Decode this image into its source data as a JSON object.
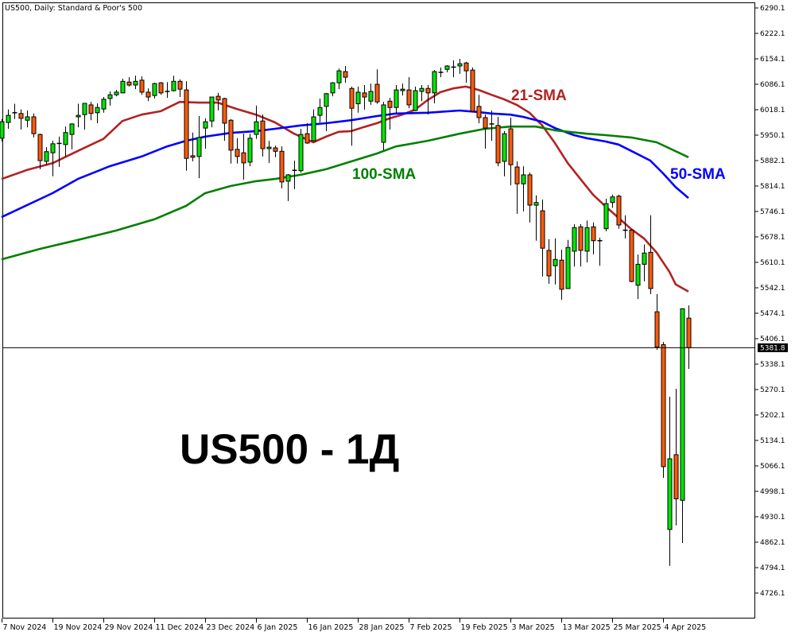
{
  "header": {
    "title": "US500, Daily:  Standard & Poor's 500"
  },
  "colors": {
    "bull": "#00e600",
    "bear": "#ff5a0a",
    "sma21": "#b22222",
    "sma50": "#0000ff",
    "sma100": "#008000",
    "crosshair": "#000000"
  },
  "chart_data": {
    "type": "candlestick",
    "title": "US500 - 1Д",
    "ylim": [
      4690,
      6300
    ],
    "grid": false,
    "y_ticks": [
      "6290.1",
      "6222.1",
      "6154.1",
      "6086.1",
      "6018.1",
      "5950.1",
      "5882.1",
      "5814.1",
      "5746.1",
      "5678.1",
      "5610.1",
      "5542.1",
      "5474.1",
      "5406.1",
      "5338.1",
      "5270.1",
      "5202.1",
      "5134.1",
      "5066.1",
      "4998.1",
      "4930.1",
      "4862.1",
      "4794.1",
      "4726.1"
    ],
    "x_ticks": [
      {
        "date": "2024-11-07",
        "label": "7 Nov 2024"
      },
      {
        "date": "2024-11-19",
        "label": "19 Nov 2024"
      },
      {
        "date": "2024-11-29",
        "label": "29 Nov 2024"
      },
      {
        "date": "2024-12-11",
        "label": "11 Dec 2024"
      },
      {
        "date": "2024-12-23",
        "label": "23 Dec 2024"
      },
      {
        "date": "2025-01-06",
        "label": "6 Jan 2025"
      },
      {
        "date": "2025-01-16",
        "label": "16 Jan 2025"
      },
      {
        "date": "2025-01-28",
        "label": "28 Jan 2025"
      },
      {
        "date": "2025-02-07",
        "label": "7 Feb 2025"
      },
      {
        "date": "2025-02-19",
        "label": "19 Feb 2025"
      },
      {
        "date": "2025-03-03",
        "label": "3 Mar 2025"
      },
      {
        "date": "2025-03-13",
        "label": "13 Mar 2025"
      },
      {
        "date": "2025-03-25",
        "label": "25 Mar 2025"
      },
      {
        "date": "2025-04-04",
        "label": "4 Apr 2025"
      }
    ],
    "current_price": {
      "value": 5381.8,
      "label": "5381.8"
    },
    "candles_columns": [
      "date",
      "open",
      "high",
      "low",
      "close"
    ],
    "candles": [
      [
        "2024-11-07",
        5942,
        5993,
        5933,
        5986
      ],
      [
        "2024-11-08",
        5984,
        6019,
        5967,
        6003
      ],
      [
        "2024-11-11",
        6010,
        6034,
        5993,
        6009
      ],
      [
        "2024-11-12",
        6008,
        6019,
        5965,
        5995
      ],
      [
        "2024-11-13",
        5990,
        6016,
        5971,
        5999
      ],
      [
        "2024-11-14",
        5999,
        6008,
        5944,
        5954
      ],
      [
        "2024-11-15",
        5952,
        5954,
        5859,
        5882
      ],
      [
        "2024-11-18",
        5880,
        5918,
        5871,
        5906
      ],
      [
        "2024-11-19",
        5903,
        5935,
        5840,
        5927
      ],
      [
        "2024-11-20",
        5927,
        5946,
        5865,
        5928
      ],
      [
        "2024-11-21",
        5925,
        5973,
        5893,
        5957
      ],
      [
        "2024-11-22",
        5952,
        5982,
        5912,
        5980
      ],
      [
        "2024-11-25",
        5999,
        6034,
        5971,
        6003
      ],
      [
        "2024-11-26",
        6005,
        6035,
        5965,
        6035
      ],
      [
        "2024-11-27",
        6031,
        6039,
        5990,
        6008
      ],
      [
        "2024-11-28",
        6010,
        6035,
        5982,
        6024
      ],
      [
        "2024-11-29",
        6020,
        6052,
        6010,
        6046
      ],
      [
        "2024-12-02",
        6048,
        6067,
        6029,
        6058
      ],
      [
        "2024-12-03",
        6058,
        6071,
        6054,
        6065
      ],
      [
        "2024-12-04",
        6063,
        6101,
        6063,
        6094
      ],
      [
        "2024-12-05",
        6092,
        6105,
        6080,
        6084
      ],
      [
        "2024-12-06",
        6084,
        6109,
        6073,
        6094
      ],
      [
        "2024-12-09",
        6097,
        6107,
        6058,
        6065
      ],
      [
        "2024-12-10",
        6065,
        6075,
        6041,
        6052
      ],
      [
        "2024-12-11",
        6056,
        6090,
        6048,
        6088
      ],
      [
        "2024-12-12",
        6090,
        6092,
        6058,
        6063
      ],
      [
        "2024-12-13",
        6067,
        6092,
        6050,
        6067
      ],
      [
        "2024-12-16",
        6069,
        6109,
        6067,
        6094
      ],
      [
        "2024-12-17",
        6094,
        6099,
        6052,
        6073
      ],
      [
        "2024-12-18",
        6071,
        6094,
        5855,
        5888
      ],
      [
        "2024-12-19",
        5895,
        5957,
        5880,
        5891
      ],
      [
        "2024-12-20",
        5893,
        6001,
        5835,
        5944
      ],
      [
        "2024-12-23",
        5969,
        5995,
        5914,
        5986
      ],
      [
        "2024-12-24",
        5988,
        6052,
        5971,
        6052
      ],
      [
        "2024-12-26",
        6054,
        6063,
        6016,
        6044
      ],
      [
        "2024-12-27",
        6048,
        6050,
        5935,
        5982
      ],
      [
        "2024-12-30",
        5990,
        5993,
        5874,
        5910
      ],
      [
        "2024-12-31",
        5912,
        5942,
        5874,
        5893
      ],
      [
        "2025-01-02",
        5903,
        5954,
        5831,
        5876
      ],
      [
        "2025-01-03",
        5878,
        5954,
        5867,
        5942
      ],
      [
        "2025-01-06",
        5952,
        6029,
        5940,
        5986
      ],
      [
        "2025-01-07",
        5988,
        6005,
        5893,
        5914
      ],
      [
        "2025-01-08",
        5914,
        5935,
        5876,
        5918
      ],
      [
        "2025-01-09",
        5916,
        5922,
        5891,
        5907
      ],
      [
        "2025-01-10",
        5907,
        5920,
        5808,
        5825
      ],
      [
        "2025-01-13",
        5827,
        5846,
        5774,
        5844
      ],
      [
        "2025-01-14",
        5855,
        5882,
        5806,
        5856
      ],
      [
        "2025-01-15",
        5855,
        5967,
        5850,
        5952
      ],
      [
        "2025-01-16",
        5954,
        5982,
        5927,
        5929
      ],
      [
        "2025-01-17",
        5935,
        6019,
        5935,
        5999
      ],
      [
        "2025-01-20",
        6003,
        6048,
        5984,
        6024
      ],
      [
        "2025-01-21",
        6027,
        6063,
        5961,
        6061
      ],
      [
        "2025-01-22",
        6063,
        6092,
        6054,
        6090
      ],
      [
        "2025-01-23",
        6090,
        6128,
        6073,
        6122
      ],
      [
        "2025-01-24",
        6120,
        6135,
        6090,
        6105
      ],
      [
        "2025-01-27",
        6075,
        6080,
        5922,
        6022
      ],
      [
        "2025-01-28",
        6034,
        6080,
        6010,
        6065
      ],
      [
        "2025-01-29",
        6063,
        6084,
        6018,
        6052
      ],
      [
        "2025-01-30",
        6041,
        6088,
        6031,
        6067
      ],
      [
        "2025-01-31",
        6086,
        6126,
        6034,
        6039
      ],
      [
        "2025-02-03",
        5931,
        6039,
        5910,
        6031
      ],
      [
        "2025-02-04",
        6041,
        6050,
        5965,
        6024
      ],
      [
        "2025-02-05",
        6024,
        6084,
        6010,
        6071
      ],
      [
        "2025-02-06",
        6069,
        6088,
        6056,
        6073
      ],
      [
        "2025-02-07",
        6071,
        6105,
        6022,
        6031
      ],
      [
        "2025-02-10",
        6016,
        6080,
        6014,
        6069
      ],
      [
        "2025-02-11",
        6067,
        6084,
        6041,
        6075
      ],
      [
        "2025-02-12",
        6075,
        6084,
        6005,
        6063
      ],
      [
        "2025-02-13",
        6063,
        6124,
        6035,
        6120
      ],
      [
        "2025-02-14",
        6117,
        6131,
        6105,
        6118
      ],
      [
        "2025-02-17",
        6126,
        6137,
        6118,
        6135
      ],
      [
        "2025-02-18",
        6131,
        6150,
        6105,
        6132
      ],
      [
        "2025-02-19",
        6135,
        6154,
        6114,
        6141
      ],
      [
        "2025-02-20",
        6143,
        6146,
        6090,
        6122
      ],
      [
        "2025-02-21",
        6124,
        6131,
        6014,
        6014
      ],
      [
        "2025-02-24",
        6027,
        6058,
        5982,
        5997
      ],
      [
        "2025-02-25",
        5997,
        6005,
        5914,
        5969
      ],
      [
        "2025-02-26",
        5980,
        6016,
        5935,
        5979
      ],
      [
        "2025-02-27",
        5976,
        5999,
        5867,
        5876
      ],
      [
        "2025-02-28",
        5880,
        5961,
        5840,
        5954
      ],
      [
        "2025-03-03",
        5967,
        5997,
        5816,
        5871
      ],
      [
        "2025-03-04",
        5865,
        5880,
        5740,
        5820
      ],
      [
        "2025-03-05",
        5820,
        5867,
        5746,
        5844
      ],
      [
        "2025-03-06",
        5844,
        5850,
        5717,
        5763
      ],
      [
        "2025-03-07",
        5763,
        5789,
        5668,
        5770
      ],
      [
        "2025-03-10",
        5748,
        5778,
        5572,
        5648
      ],
      [
        "2025-03-11",
        5642,
        5672,
        5553,
        5574
      ],
      [
        "2025-03-12",
        5601,
        5674,
        5551,
        5618
      ],
      [
        "2025-03-13",
        5616,
        5644,
        5510,
        5538
      ],
      [
        "2025-03-14",
        5540,
        5670,
        5540,
        5650
      ],
      [
        "2025-03-17",
        5640,
        5712,
        5599,
        5703
      ],
      [
        "2025-03-18",
        5705,
        5712,
        5599,
        5642
      ],
      [
        "2025-03-19",
        5640,
        5722,
        5610,
        5703
      ],
      [
        "2025-03-20",
        5705,
        5717,
        5631,
        5668
      ],
      [
        "2025-03-21",
        5668,
        5676,
        5601,
        5667
      ],
      [
        "2025-03-24",
        5700,
        5780,
        5693,
        5767
      ],
      [
        "2025-03-25",
        5770,
        5791,
        5756,
        5785
      ],
      [
        "2025-03-26",
        5787,
        5791,
        5700,
        5710
      ],
      [
        "2025-03-27",
        5696,
        5736,
        5674,
        5695
      ],
      [
        "2025-03-28",
        5696,
        5698,
        5557,
        5559
      ],
      [
        "2025-03-31",
        5549,
        5631,
        5512,
        5605
      ],
      [
        "2025-04-01",
        5605,
        5658,
        5559,
        5635
      ],
      [
        "2025-04-02",
        5637,
        5736,
        5525,
        5540
      ],
      [
        "2025-04-03",
        5478,
        5525,
        5376,
        5384
      ],
      [
        "2025-04-04",
        5390,
        5397,
        5034,
        5064
      ],
      [
        "2025-04-07",
        4896,
        5251,
        4799,
        5085
      ],
      [
        "2025-04-08",
        5096,
        5272,
        4907,
        4978
      ],
      [
        "2025-04-09",
        4974,
        5487,
        4860,
        5486
      ],
      [
        "2025-04-10",
        5461,
        5495,
        5325,
        5381.8
      ]
    ],
    "series": [
      {
        "name": "21-SMA",
        "color": "#b22222",
        "points": [
          [
            "2024-11-07",
            5833
          ],
          [
            "2024-11-13",
            5857
          ],
          [
            "2024-11-19",
            5875
          ],
          [
            "2024-11-25",
            5908
          ],
          [
            "2024-11-29",
            5940
          ],
          [
            "2024-12-04",
            5988
          ],
          [
            "2024-12-09",
            6005
          ],
          [
            "2024-12-12",
            6014
          ],
          [
            "2024-12-17",
            6039
          ],
          [
            "2024-12-20",
            6037
          ],
          [
            "2024-12-26",
            6037
          ],
          [
            "2024-12-31",
            6020
          ],
          [
            "2025-01-06",
            6005
          ],
          [
            "2025-01-09",
            5984
          ],
          [
            "2025-01-14",
            5954
          ],
          [
            "2025-01-17",
            5931
          ],
          [
            "2025-01-21",
            5946
          ],
          [
            "2025-01-23",
            5959
          ],
          [
            "2025-01-27",
            5961
          ],
          [
            "2025-01-29",
            5972
          ],
          [
            "2025-01-31",
            5982
          ],
          [
            "2025-02-04",
            5995
          ],
          [
            "2025-02-06",
            6005
          ],
          [
            "2025-02-10",
            6018
          ],
          [
            "2025-02-12",
            6044
          ],
          [
            "2025-02-14",
            6065
          ],
          [
            "2025-02-18",
            6075
          ],
          [
            "2025-02-20",
            6080
          ],
          [
            "2025-02-24",
            6071
          ],
          [
            "2025-02-26",
            6058
          ],
          [
            "2025-02-28",
            6046
          ],
          [
            "2025-03-04",
            6031
          ],
          [
            "2025-03-06",
            6010
          ],
          [
            "2025-03-10",
            5976
          ],
          [
            "2025-03-12",
            5929
          ],
          [
            "2025-03-14",
            5876
          ],
          [
            "2025-03-18",
            5833
          ],
          [
            "2025-03-20",
            5791
          ],
          [
            "2025-03-24",
            5759
          ],
          [
            "2025-03-26",
            5729
          ],
          [
            "2025-03-28",
            5699
          ],
          [
            "2025-04-01",
            5674
          ],
          [
            "2025-04-03",
            5636
          ],
          [
            "2025-04-07",
            5585
          ],
          [
            "2025-04-08",
            5551
          ],
          [
            "2025-04-10",
            5532
          ]
        ]
      },
      {
        "name": "50-SMA",
        "color": "#0000ff",
        "points": [
          [
            "2024-11-07",
            5731
          ],
          [
            "2024-11-19",
            5795
          ],
          [
            "2024-11-25",
            5833
          ],
          [
            "2024-12-02",
            5867
          ],
          [
            "2024-12-09",
            5893
          ],
          [
            "2024-12-13",
            5920
          ],
          [
            "2024-12-18",
            5935
          ],
          [
            "2024-12-23",
            5946
          ],
          [
            "2024-12-30",
            5956
          ],
          [
            "2025-01-06",
            5961
          ],
          [
            "2025-01-09",
            5967
          ],
          [
            "2025-01-15",
            5976
          ],
          [
            "2025-01-21",
            5982
          ],
          [
            "2025-01-27",
            5990
          ],
          [
            "2025-01-31",
            6001
          ],
          [
            "2025-02-05",
            6008
          ],
          [
            "2025-02-12",
            6010
          ],
          [
            "2025-02-19",
            6016
          ],
          [
            "2025-02-24",
            6012
          ],
          [
            "2025-02-26",
            6008
          ],
          [
            "2025-03-03",
            6005
          ],
          [
            "2025-03-05",
            5999
          ],
          [
            "2025-03-10",
            5986
          ],
          [
            "2025-03-12",
            5969
          ],
          [
            "2025-03-17",
            5950
          ],
          [
            "2025-03-19",
            5942
          ],
          [
            "2025-03-24",
            5933
          ],
          [
            "2025-03-26",
            5925
          ],
          [
            "2025-03-28",
            5908
          ],
          [
            "2025-04-02",
            5882
          ],
          [
            "2025-04-04",
            5848
          ],
          [
            "2025-04-08",
            5811
          ],
          [
            "2025-04-10",
            5782
          ]
        ]
      },
      {
        "name": "100-SMA",
        "color": "#008000",
        "points": [
          [
            "2024-11-07",
            5618
          ],
          [
            "2024-11-15",
            5646
          ],
          [
            "2024-11-25",
            5670
          ],
          [
            "2024-12-03",
            5695
          ],
          [
            "2024-12-11",
            5725
          ],
          [
            "2024-12-18",
            5761
          ],
          [
            "2024-12-23",
            5795
          ],
          [
            "2024-12-30",
            5814
          ],
          [
            "2025-01-06",
            5827
          ],
          [
            "2025-01-09",
            5833
          ],
          [
            "2025-01-15",
            5844
          ],
          [
            "2025-01-21",
            5859
          ],
          [
            "2025-01-27",
            5880
          ],
          [
            "2025-01-31",
            5901
          ],
          [
            "2025-02-05",
            5920
          ],
          [
            "2025-02-12",
            5935
          ],
          [
            "2025-02-19",
            5954
          ],
          [
            "2025-02-25",
            5967
          ],
          [
            "2025-03-03",
            5973
          ],
          [
            "2025-03-07",
            5973
          ],
          [
            "2025-03-12",
            5963
          ],
          [
            "2025-03-19",
            5954
          ],
          [
            "2025-03-24",
            5950
          ],
          [
            "2025-03-28",
            5944
          ],
          [
            "2025-04-03",
            5931
          ],
          [
            "2025-04-10",
            5891
          ]
        ]
      }
    ]
  }
}
